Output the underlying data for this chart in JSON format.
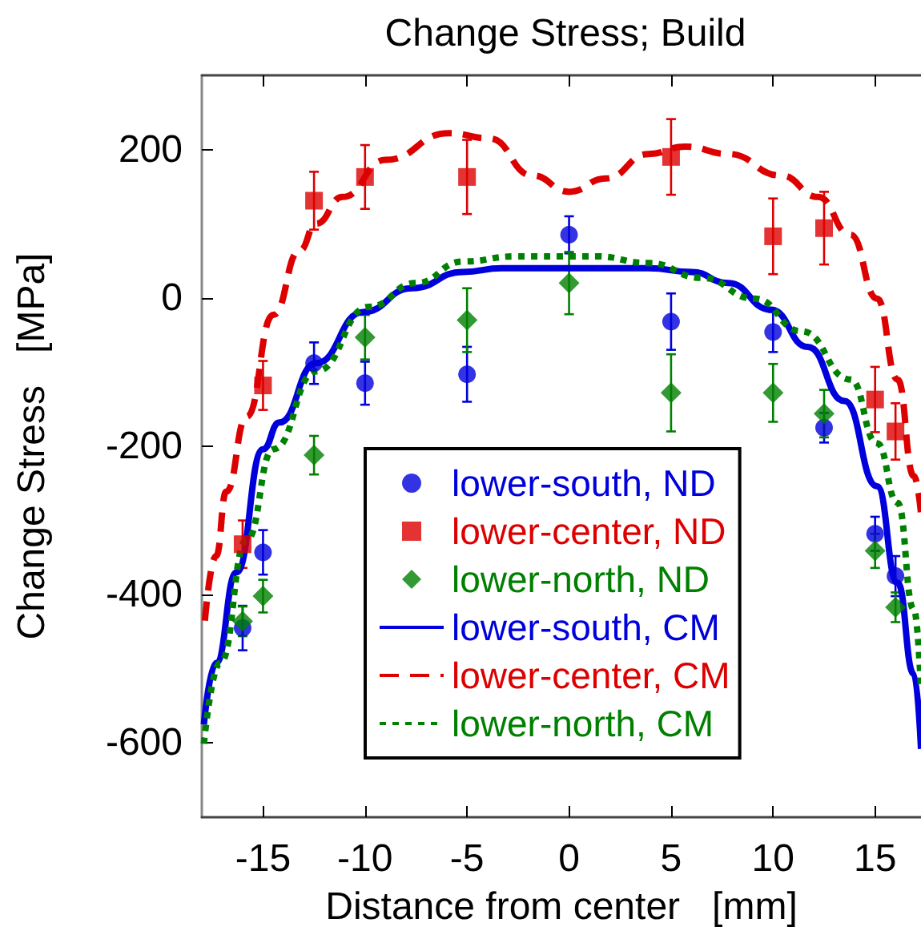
{
  "chart_data": {
    "type": "scatter",
    "title": "Change Stress; Build",
    "xlabel": "Distance from center   [mm]",
    "ylabel": "Change Stress   [MPa]",
    "xlim": [
      -18,
      17.25
    ],
    "xticks": [
      -15,
      -10,
      -5,
      0,
      5,
      10,
      15
    ],
    "ylim": [
      -700,
      300
    ],
    "yticks": [
      -600,
      -400,
      -200,
      0,
      200
    ],
    "grid": false,
    "legend": "bottom",
    "series": [
      {
        "name": "lower-south, ND",
        "marker": "circle",
        "color": "#0000dd",
        "x": [
          -16,
          -15,
          -12.5,
          -10,
          -5,
          0,
          5,
          10,
          12.5,
          15,
          16
        ],
        "values": [
          -445,
          -343,
          -88,
          -115,
          -103,
          85,
          -32,
          -46,
          -175,
          -318,
          -375
        ],
        "errors": [
          30,
          30,
          28,
          29,
          37,
          25,
          38,
          27,
          20,
          23,
          27
        ]
      },
      {
        "name": "lower-center, ND",
        "marker": "square",
        "color": "#dd0000",
        "x": [
          -16,
          -15,
          -12.5,
          -10,
          -5,
          5,
          10,
          12.5,
          15,
          16
        ],
        "values": [
          -332,
          -118,
          131,
          163,
          163,
          190,
          83,
          94,
          -137,
          -180
        ],
        "errors": [
          32,
          33,
          39,
          43,
          50,
          51,
          51,
          49,
          44,
          38
        ]
      },
      {
        "name": "lower-north, ND",
        "marker": "diamond",
        "color": "#008000",
        "x": [
          -16,
          -15,
          -12.5,
          -10,
          -5,
          0,
          5,
          10,
          12.5,
          15,
          16
        ],
        "values": [
          -436,
          -402,
          -212,
          -53,
          -30,
          20,
          -128,
          -128,
          -156,
          -341,
          -417
        ],
        "errors": [
          20,
          22,
          26,
          30,
          43,
          42,
          52,
          39,
          32,
          23,
          20
        ]
      },
      {
        "name": "lower-south, CM",
        "type": "line",
        "marker": "none",
        "line_style": "solid",
        "color": "#0000dd",
        "x": [
          -17.9,
          -17.3,
          -16.3,
          -15,
          -14.2,
          -12.4,
          -10.1,
          -7.7,
          -5.2,
          -3.3,
          3.9,
          6,
          7.8,
          9.9,
          11.7,
          13.5,
          15.1,
          16.1,
          16.9,
          17.25
        ],
        "values": [
          -575,
          -492,
          -370,
          -204,
          -168,
          -88,
          -19,
          13,
          35,
          40,
          40,
          35,
          20,
          -16,
          -66,
          -139,
          -254,
          -384,
          -507,
          -608
        ]
      },
      {
        "name": "lower-center, CM",
        "type": "line",
        "marker": "none",
        "line_style": "dashed",
        "color": "#dd0000",
        "x": [
          -17.85,
          -17.3,
          -16.8,
          -15.8,
          -14.5,
          -13.2,
          -12.4,
          -11.1,
          -9,
          -5.9,
          -3.9,
          -1.8,
          0,
          1.8,
          3.9,
          5.7,
          7.8,
          10.4,
          12.2,
          13.8,
          15.1,
          16.1,
          16.9,
          17.25
        ],
        "values": [
          -435,
          -348,
          -261,
          -160,
          -23,
          64,
          100,
          136,
          186,
          222,
          215,
          165,
          143,
          161,
          194,
          204,
          194,
          165,
          136,
          85,
          -1,
          -110,
          -240,
          -290
        ]
      },
      {
        "name": "lower-north, CM",
        "type": "line",
        "marker": "none",
        "line_style": "dotted",
        "color": "#008000",
        "x": [
          -17.9,
          -17.1,
          -15.8,
          -14.5,
          -12.4,
          -9.8,
          -7.5,
          -5.2,
          -2.6,
          1.3,
          3.9,
          6.5,
          9.1,
          11.4,
          13.8,
          15.1,
          16.1,
          16.9,
          17.25
        ],
        "values": [
          -601,
          -492,
          -326,
          -204,
          -99,
          -12,
          20,
          49,
          56,
          56,
          47,
          27,
          -1,
          -45,
          -110,
          -196,
          -276,
          -420,
          -528
        ]
      }
    ]
  }
}
